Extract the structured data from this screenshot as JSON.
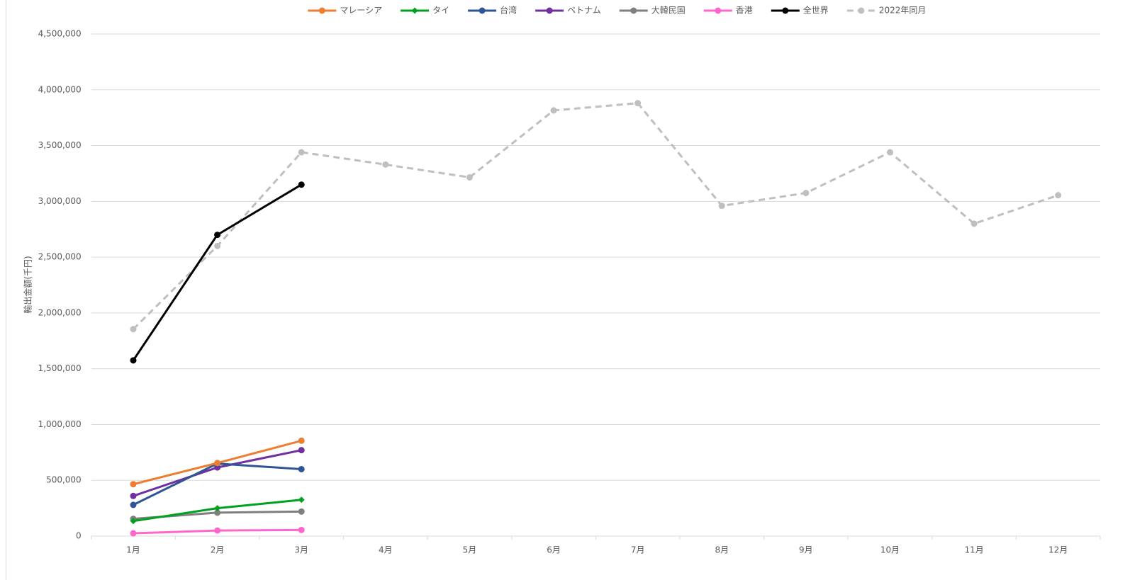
{
  "chart_data": {
    "type": "line",
    "y_label": "輸出金額(千円)",
    "categories": [
      "1月",
      "2月",
      "3月",
      "4月",
      "5月",
      "6月",
      "7月",
      "8月",
      "9月",
      "10月",
      "11月",
      "12月"
    ],
    "ylim": [
      0,
      4500000
    ],
    "yticks": [
      0,
      {
        "value": 500000,
        "label": "500,000"
      },
      {
        "value": 1000000,
        "label": "1,000,000"
      },
      {
        "value": 1500000,
        "label": "1,500,000"
      },
      {
        "value": 2000000,
        "label": "2,000,000"
      },
      {
        "value": 2500000,
        "label": "2,500,000"
      },
      {
        "value": 3000000,
        "label": "3,000,000"
      },
      {
        "value": 3500000,
        "label": "3,500,000"
      },
      {
        "value": 4000000,
        "label": "4,000,000"
      },
      {
        "value": 4500000,
        "label": "4,500,000"
      }
    ],
    "grid": true,
    "legend": "top",
    "series": [
      {
        "name": "マレーシア",
        "color": "#ed7d31",
        "marker": "circle",
        "values": [
          465000,
          655000,
          855000,
          null,
          null,
          null,
          null,
          null,
          null,
          null,
          null,
          null
        ]
      },
      {
        "name": "タイ",
        "color": "#00a020",
        "marker": "diamond",
        "values": [
          135000,
          250000,
          325000,
          null,
          null,
          null,
          null,
          null,
          null,
          null,
          null,
          null
        ]
      },
      {
        "name": "台湾",
        "color": "#2f5597",
        "marker": "circle",
        "values": [
          280000,
          650000,
          600000,
          null,
          null,
          null,
          null,
          null,
          null,
          null,
          null,
          null
        ]
      },
      {
        "name": "ベトナム",
        "color": "#7030a0",
        "marker": "circle",
        "values": [
          360000,
          615000,
          770000,
          null,
          null,
          null,
          null,
          null,
          null,
          null,
          null,
          null
        ]
      },
      {
        "name": "大韓民国",
        "color": "#7f7f7f",
        "marker": "circle",
        "values": [
          155000,
          210000,
          220000,
          null,
          null,
          null,
          null,
          null,
          null,
          null,
          null,
          null
        ]
      },
      {
        "name": "香港",
        "color": "#ff66cc",
        "marker": "circle",
        "values": [
          25000,
          50000,
          55000,
          null,
          null,
          null,
          null,
          null,
          null,
          null,
          null,
          null
        ]
      },
      {
        "name": "全世界",
        "color": "#000000",
        "marker": "circle",
        "values": [
          1575000,
          2700000,
          3150000,
          null,
          null,
          null,
          null,
          null,
          null,
          null,
          null,
          null
        ]
      },
      {
        "name": "2022年同月",
        "color": "#bfbfbf",
        "marker": "circle",
        "dashed": true,
        "values": [
          1855000,
          2600000,
          3440000,
          3330000,
          3215000,
          3815000,
          3880000,
          2960000,
          3075000,
          3440000,
          2800000,
          3055000
        ]
      }
    ]
  }
}
